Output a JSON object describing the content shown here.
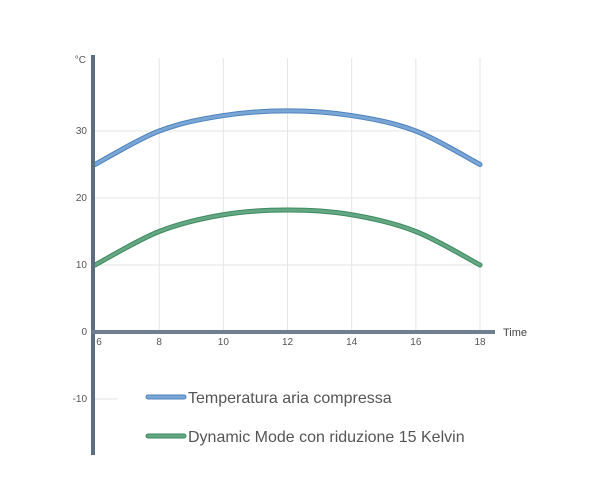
{
  "chart_data": {
    "type": "line",
    "title": "",
    "xlabel": "Time",
    "ylabel": "°C",
    "xlim": [
      6,
      18
    ],
    "ylim": [
      -16,
      82
    ],
    "x_ticks": [
      6,
      8,
      10,
      12,
      14,
      16,
      18
    ],
    "x_tick_labels": [
      "6",
      "8",
      "10",
      "12",
      "14",
      "16",
      "18"
    ],
    "y_ticks": [
      -10,
      0,
      10,
      20,
      30
    ],
    "y_tick_labels": [
      "-10",
      "0",
      "10",
      "20",
      "30"
    ],
    "grid": true,
    "legend_position": "bottom",
    "x": [
      6,
      8,
      10,
      12,
      14,
      16,
      18
    ],
    "series": [
      {
        "name": "Temperatura aria compressa",
        "color": "#7aa6d6",
        "values": [
          25,
          30,
          32.3,
          33,
          32.3,
          30,
          25
        ]
      },
      {
        "name": "Dynamic Mode con riduzione 15 Kelvin",
        "color": "#63a784",
        "values": [
          10,
          15,
          17.5,
          18.2,
          17.5,
          15,
          10
        ]
      }
    ]
  }
}
